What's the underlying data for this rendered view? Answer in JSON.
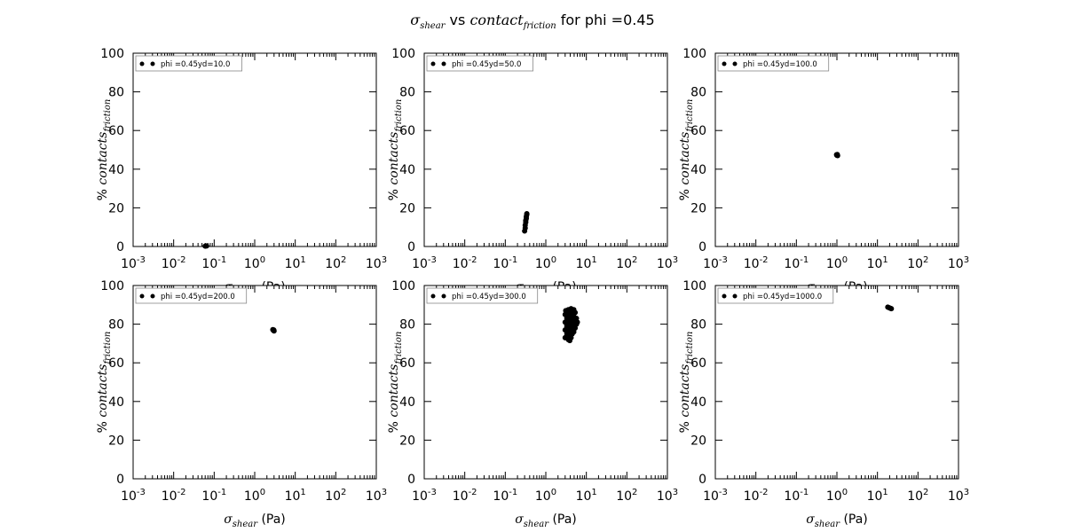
{
  "figure": {
    "title_math": "σ",
    "title_math_sub": "shear",
    "title_vs": " vs ",
    "title_math2": "contact",
    "title_math2_sub": "friction",
    "title_rest": " for phi =0.45"
  },
  "axis_labels": {
    "x_math": "σ",
    "x_math_sub": "shear",
    "x_unit": " (Pa)",
    "y_prefix": "% ",
    "y_math": "contacts",
    "y_math_sub": "friction"
  },
  "chart_data": [
    {
      "type": "scatter",
      "legend": "phi =0.45yd=10.0",
      "xscale": "log",
      "xlim": [
        0.001,
        1000
      ],
      "ylim": [
        0,
        100
      ],
      "x_ticks": [
        "10-3",
        "10-2",
        "10-1",
        "100",
        "101",
        "102",
        "103"
      ],
      "y_ticks": [
        "0",
        "20",
        "40",
        "60",
        "80",
        "100"
      ],
      "legend_loc": "upper left",
      "points": [
        [
          0.06,
          0.2
        ],
        [
          0.065,
          0.3
        ]
      ]
    },
    {
      "type": "scatter",
      "legend": "phi =0.45yd=50.0",
      "xscale": "log",
      "xlim": [
        0.001,
        1000
      ],
      "ylim": [
        0,
        100
      ],
      "x_ticks": [
        "10-3",
        "10-2",
        "10-1",
        "100",
        "101",
        "102",
        "103"
      ],
      "y_ticks": [
        "0",
        "20",
        "40",
        "60",
        "80",
        "100"
      ],
      "legend_loc": "upper left",
      "points": [
        [
          0.3,
          8
        ],
        [
          0.31,
          9.5
        ],
        [
          0.31,
          11
        ],
        [
          0.32,
          12.5
        ],
        [
          0.32,
          13.5
        ],
        [
          0.33,
          14.5
        ],
        [
          0.33,
          15.5
        ],
        [
          0.34,
          16.5
        ],
        [
          0.34,
          17
        ]
      ]
    },
    {
      "type": "scatter",
      "legend": "phi =0.45yd=100.0",
      "xscale": "log",
      "xlim": [
        0.001,
        1000
      ],
      "ylim": [
        0,
        100
      ],
      "x_ticks": [
        "10-3",
        "10-2",
        "10-1",
        "100",
        "101",
        "102",
        "103"
      ],
      "y_ticks": [
        "0",
        "20",
        "40",
        "60",
        "80",
        "100"
      ],
      "legend_loc": "upper left",
      "points": [
        [
          0.98,
          47.5
        ],
        [
          1.0,
          47.2
        ],
        [
          1.02,
          47.6
        ],
        [
          1.04,
          47.0
        ]
      ]
    },
    {
      "type": "scatter",
      "legend": "phi =0.45yd=200.0",
      "xscale": "log",
      "xlim": [
        0.001,
        1000
      ],
      "ylim": [
        0,
        100
      ],
      "x_ticks": [
        "10-3",
        "10-2",
        "10-1",
        "100",
        "101",
        "102",
        "103"
      ],
      "y_ticks": [
        "0",
        "20",
        "40",
        "60",
        "80",
        "100"
      ],
      "legend_loc": "upper left",
      "points": [
        [
          2.8,
          77.2
        ],
        [
          2.9,
          76.8
        ],
        [
          3.0,
          76.5
        ],
        [
          2.95,
          77.0
        ]
      ]
    },
    {
      "type": "scatter",
      "legend": "phi =0.45yd=300.0",
      "xscale": "log",
      "xlim": [
        0.001,
        1000
      ],
      "ylim": [
        0,
        100
      ],
      "x_ticks": [
        "10-3",
        "10-2",
        "10-1",
        "100",
        "101",
        "102",
        "103"
      ],
      "y_ticks": [
        "0",
        "20",
        "40",
        "60",
        "80",
        "100"
      ],
      "legend_loc": "upper left",
      "points": [
        [
          3.0,
          73
        ],
        [
          3.0,
          77
        ],
        [
          3.0,
          81
        ],
        [
          3.0,
          85
        ],
        [
          3.1,
          87
        ],
        [
          3.3,
          75
        ],
        [
          3.3,
          79
        ],
        [
          3.3,
          83
        ],
        [
          3.3,
          86
        ],
        [
          3.6,
          72
        ],
        [
          3.6,
          76
        ],
        [
          3.6,
          80
        ],
        [
          3.6,
          84
        ],
        [
          3.6,
          87.5
        ],
        [
          3.9,
          71.5
        ],
        [
          3.9,
          74
        ],
        [
          3.9,
          78
        ],
        [
          3.9,
          82
        ],
        [
          3.9,
          86
        ],
        [
          4.2,
          73
        ],
        [
          4.2,
          77
        ],
        [
          4.2,
          81
        ],
        [
          4.2,
          85
        ],
        [
          4.2,
          88
        ],
        [
          4.5,
          75
        ],
        [
          4.5,
          79
        ],
        [
          4.5,
          83
        ],
        [
          4.5,
          87
        ],
        [
          4.9,
          76
        ],
        [
          4.9,
          80
        ],
        [
          4.9,
          84
        ],
        [
          4.9,
          87.5
        ],
        [
          5.3,
          78
        ],
        [
          5.3,
          82
        ],
        [
          5.3,
          86
        ],
        [
          5.7,
          80
        ],
        [
          5.7,
          83
        ],
        [
          6.0,
          81
        ]
      ]
    },
    {
      "type": "scatter",
      "legend": "phi =0.45yd=1000.0",
      "xscale": "log",
      "xlim": [
        0.001,
        1000
      ],
      "ylim": [
        0,
        100
      ],
      "x_ticks": [
        "10-3",
        "10-2",
        "10-1",
        "100",
        "101",
        "102",
        "103"
      ],
      "y_ticks": [
        "0",
        "20",
        "40",
        "60",
        "80",
        "100"
      ],
      "legend_loc": "upper left",
      "points": [
        [
          18,
          88.8
        ],
        [
          19.5,
          88.5
        ],
        [
          21,
          88.2
        ],
        [
          22,
          88.0
        ]
      ]
    }
  ]
}
